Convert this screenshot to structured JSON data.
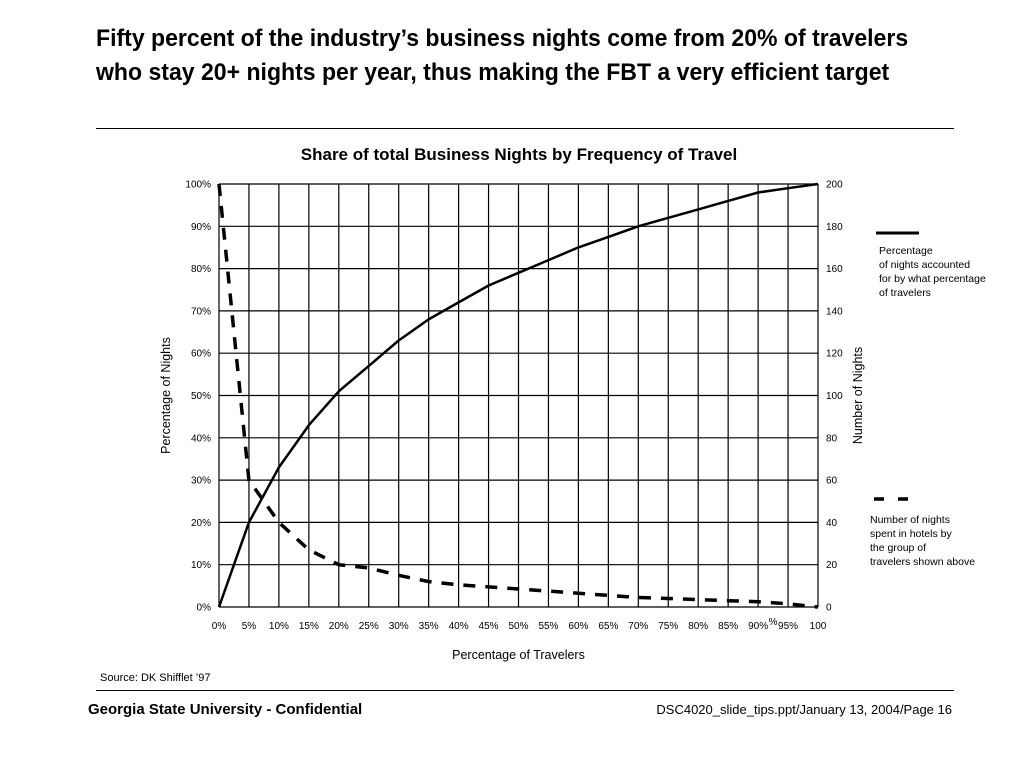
{
  "slide": {
    "headline": "Fifty percent of the industry’s business nights come from 20% of travelers who stay 20+ nights per year, thus making the FBT a very efficient target",
    "source": "Source: DK Shifflet ’97",
    "footer_left": "Georgia State University - Confidential",
    "footer_right": "DSC4020_slide_tips.ppt/January 13, 2004/Page 16"
  },
  "legend": {
    "solid_lines": [
      "Percentage",
      "of nights accounted",
      "for by what percentage",
      "of travelers"
    ],
    "dashed_lines": [
      "Number of nights",
      "spent in hotels by",
      "the group of",
      "travelers shown above"
    ]
  },
  "chart_data": {
    "type": "line",
    "title": "Share of total Business Nights by Frequency of Travel",
    "xlabel": "Percentage of Travelers",
    "ylabel_left": "Percentage of Nights",
    "ylabel_right": "Number of Nights",
    "x_ticks": [
      "0%",
      "5%",
      "10%",
      "15%",
      "20%",
      "25%",
      "30%",
      "35%",
      "40%",
      "45%",
      "50%",
      "55%",
      "60%",
      "65%",
      "70%",
      "75%",
      "80%",
      "85%",
      "90%",
      "95%",
      "100"
    ],
    "x_tick_overlap": "%",
    "y_left_ticks": [
      "0%",
      "10%",
      "20%",
      "30%",
      "40%",
      "50%",
      "60%",
      "70%",
      "80%",
      "90%",
      "100%"
    ],
    "y_right_ticks": [
      "0",
      "20",
      "40",
      "60",
      "80",
      "100",
      "120",
      "140",
      "160",
      "180",
      "200"
    ],
    "xlim": [
      0,
      100
    ],
    "ylim_left": [
      0,
      100
    ],
    "ylim_right": [
      0,
      200
    ],
    "grid": true,
    "x": [
      0,
      5,
      10,
      15,
      20,
      25,
      30,
      35,
      40,
      45,
      50,
      55,
      60,
      65,
      70,
      75,
      80,
      85,
      90,
      95,
      100
    ],
    "series": [
      {
        "axis": "left",
        "style": "solid",
        "values": [
          0,
          20,
          33,
          43,
          51,
          57,
          63,
          68,
          72,
          76,
          79,
          82,
          85,
          87.5,
          90,
          92,
          94,
          96,
          98,
          99,
          100
        ]
      },
      {
        "axis": "right",
        "style": "dashed",
        "values": [
          200,
          60,
          40,
          27,
          20,
          18.5,
          15,
          12,
          10.5,
          9.5,
          8.5,
          7.5,
          6.5,
          5.5,
          4.5,
          4,
          3.5,
          3,
          2.5,
          1.5,
          0
        ]
      }
    ]
  }
}
